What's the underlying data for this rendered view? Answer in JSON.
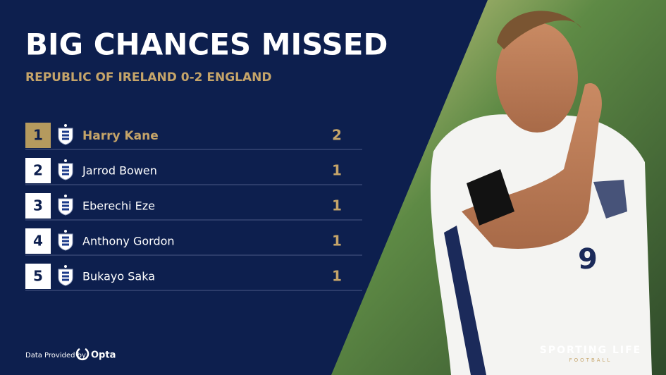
{
  "header": {
    "title": "BIG CHANCES MISSED",
    "subtitle": "REPUBLIC OF IRELAND 0-2 ENGLAND"
  },
  "table": {
    "rows": [
      [
        1,
        "Harry Kane",
        2
      ],
      [
        2,
        "Jarrod Bowen",
        1
      ],
      [
        3,
        "Eberechi Eze",
        1
      ],
      [
        4,
        "Anthony Gordon",
        1
      ],
      [
        5,
        "Bukayo Saka",
        1
      ]
    ]
  },
  "footer": {
    "provider_label": "Data Provided by",
    "provider": "Opta",
    "brand": "SPORTING LIFE",
    "brand_sub": "FOOTBALL"
  }
}
